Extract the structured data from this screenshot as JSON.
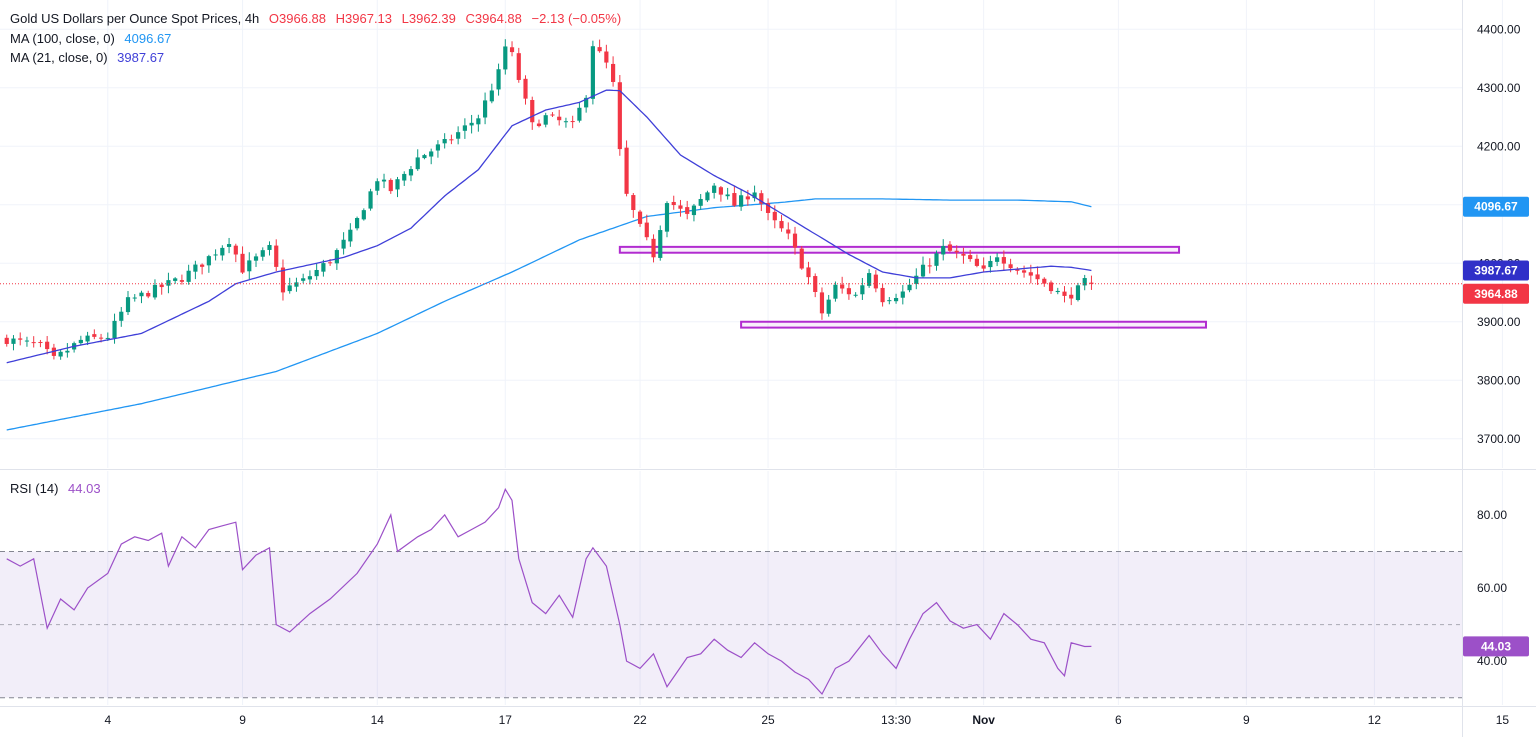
{
  "legend": {
    "symbol": "Gold US Dollars per Ounce Spot Prices, 4h",
    "open": "O3966.88",
    "high": "H3967.13",
    "low": "L3962.39",
    "close": "C3964.88",
    "change": "−2.13 (−0.05%)",
    "ma100_label": "MA (100, close, 0)",
    "ma100_value": "4096.67",
    "ma21_label": "MA (21, close, 0)",
    "ma21_value": "3987.67",
    "rsi_label": "RSI (14)",
    "rsi_value": "44.03"
  },
  "colors": {
    "bull": "#089981",
    "bear": "#f23645",
    "ma100": "#2196f3",
    "ma21": "#3f3fd8",
    "rsi": "#9c50c8",
    "zone": "#b12bd0",
    "last_price": "#f23645"
  },
  "chart_data": {
    "type": "candlestick",
    "title": "Gold US Dollars per Ounce Spot Prices, 4h",
    "price_axis": {
      "ylim": [
        3650,
        4450
      ],
      "ticks": [
        3700,
        3800,
        3900,
        4000,
        4100,
        4200,
        4300,
        4400
      ],
      "tick_labels": [
        "3700.00",
        "3800.00",
        "3900.00",
        "4000.00",
        "4100.00",
        "4200.00",
        "4300.00",
        "4400.00"
      ]
    },
    "x_axis": {
      "bar_range": [
        -1,
        216
      ],
      "ticks": [
        {
          "label": "4",
          "bar": 15
        },
        {
          "label": "9",
          "bar": 35
        },
        {
          "label": "14",
          "bar": 55
        },
        {
          "label": "17",
          "bar": 74
        },
        {
          "label": "22",
          "bar": 94
        },
        {
          "label": "25",
          "bar": 113
        },
        {
          "label": "13:30",
          "bar": 132
        },
        {
          "label": "Nov",
          "bar": 145,
          "bold": true
        },
        {
          "label": "6",
          "bar": 165
        },
        {
          "label": "9",
          "bar": 184
        },
        {
          "label": "12",
          "bar": 203
        },
        {
          "label": "15",
          "bar": 222
        }
      ]
    },
    "anchors": [
      [
        0,
        3870
      ],
      [
        5,
        3858
      ],
      [
        7,
        3835
      ],
      [
        11,
        3868
      ],
      [
        15,
        3875
      ],
      [
        18,
        3935
      ],
      [
        22,
        3955
      ],
      [
        26,
        3975
      ],
      [
        29,
        4000
      ],
      [
        33,
        4040
      ],
      [
        35,
        3990
      ],
      [
        39,
        4025
      ],
      [
        41,
        3955
      ],
      [
        44,
        3970
      ],
      [
        48,
        4005
      ],
      [
        51,
        4050
      ],
      [
        55,
        4145
      ],
      [
        57,
        4125
      ],
      [
        61,
        4180
      ],
      [
        65,
        4205
      ],
      [
        70,
        4250
      ],
      [
        73,
        4325
      ],
      [
        74,
        4370
      ],
      [
        75,
        4355
      ],
      [
        78,
        4235
      ],
      [
        80,
        4250
      ],
      [
        84,
        4235
      ],
      [
        86,
        4290
      ],
      [
        87,
        4375
      ],
      [
        89,
        4340
      ],
      [
        90,
        4305
      ],
      [
        91,
        4190
      ],
      [
        92,
        4115
      ],
      [
        94,
        4060
      ],
      [
        96,
        4015
      ],
      [
        98,
        4110
      ],
      [
        101,
        4080
      ],
      [
        105,
        4135
      ],
      [
        108,
        4100
      ],
      [
        111,
        4125
      ],
      [
        113,
        4080
      ],
      [
        116,
        4045
      ],
      [
        119,
        3975
      ],
      [
        121,
        3915
      ],
      [
        123,
        3960
      ],
      [
        126,
        3945
      ],
      [
        128,
        3985
      ],
      [
        130,
        3940
      ],
      [
        133,
        3950
      ],
      [
        136,
        3990
      ],
      [
        139,
        4025
      ],
      [
        142,
        4010
      ],
      [
        145,
        3985
      ],
      [
        147,
        4015
      ],
      [
        150,
        3990
      ],
      [
        152,
        3980
      ],
      [
        155,
        3960
      ],
      [
        157,
        3940
      ],
      [
        159,
        3955
      ],
      [
        160,
        3967
      ],
      [
        161,
        3964.88
      ]
    ],
    "ma100": [
      [
        0,
        3715
      ],
      [
        20,
        3760
      ],
      [
        40,
        3815
      ],
      [
        55,
        3880
      ],
      [
        65,
        3935
      ],
      [
        75,
        3985
      ],
      [
        85,
        4040
      ],
      [
        90,
        4060
      ],
      [
        95,
        4080
      ],
      [
        105,
        4095
      ],
      [
        115,
        4104
      ],
      [
        120,
        4110
      ],
      [
        130,
        4110
      ],
      [
        140,
        4108
      ],
      [
        150,
        4108
      ],
      [
        158,
        4105
      ],
      [
        161,
        4096.67
      ]
    ],
    "ma21": [
      [
        0,
        3830
      ],
      [
        10,
        3858
      ],
      [
        20,
        3880
      ],
      [
        30,
        3935
      ],
      [
        34,
        3965
      ],
      [
        40,
        3985
      ],
      [
        50,
        4010
      ],
      [
        55,
        4030
      ],
      [
        60,
        4060
      ],
      [
        65,
        4115
      ],
      [
        70,
        4160
      ],
      [
        75,
        4235
      ],
      [
        80,
        4262
      ],
      [
        85,
        4275
      ],
      [
        89,
        4296
      ],
      [
        91,
        4295
      ],
      [
        95,
        4250
      ],
      [
        100,
        4185
      ],
      [
        105,
        4150
      ],
      [
        110,
        4120
      ],
      [
        115,
        4085
      ],
      [
        120,
        4050
      ],
      [
        125,
        4015
      ],
      [
        130,
        3985
      ],
      [
        135,
        3975
      ],
      [
        140,
        3975
      ],
      [
        145,
        3985
      ],
      [
        150,
        3990
      ],
      [
        155,
        3995
      ],
      [
        158,
        3993
      ],
      [
        161,
        3987.67
      ]
    ],
    "last_price": 3964.88,
    "resistance_zone": {
      "from_bar": 91,
      "to_bar": 174,
      "low": 4018,
      "high": 4028
    },
    "support_zone": {
      "from_bar": 109,
      "to_bar": 178,
      "low": 3890,
      "high": 3900
    },
    "rsi": {
      "period": 14,
      "ylim": [
        28,
        92
      ],
      "ticks": [
        40,
        60,
        80
      ],
      "tick_labels": [
        "40.00",
        "60.00",
        "80.00"
      ],
      "band": [
        30,
        70
      ],
      "midline": 50,
      "last": 44.03,
      "values": [
        [
          0,
          68
        ],
        [
          2,
          66
        ],
        [
          4,
          68
        ],
        [
          6,
          49
        ],
        [
          8,
          57
        ],
        [
          10,
          54
        ],
        [
          12,
          60
        ],
        [
          15,
          64
        ],
        [
          17,
          72
        ],
        [
          19,
          74
        ],
        [
          21,
          73
        ],
        [
          23,
          75
        ],
        [
          24,
          66
        ],
        [
          26,
          74
        ],
        [
          28,
          71
        ],
        [
          30,
          76
        ],
        [
          32,
          77
        ],
        [
          34,
          78
        ],
        [
          35,
          65
        ],
        [
          37,
          69
        ],
        [
          39,
          71
        ],
        [
          40,
          50
        ],
        [
          42,
          48
        ],
        [
          45,
          53
        ],
        [
          48,
          57
        ],
        [
          52,
          64
        ],
        [
          55,
          72
        ],
        [
          57,
          80
        ],
        [
          58,
          70
        ],
        [
          61,
          74
        ],
        [
          63,
          76
        ],
        [
          65,
          80
        ],
        [
          67,
          74
        ],
        [
          69,
          76
        ],
        [
          71,
          78
        ],
        [
          73,
          82
        ],
        [
          74,
          87
        ],
        [
          75,
          84
        ],
        [
          76,
          68
        ],
        [
          78,
          56
        ],
        [
          80,
          53
        ],
        [
          82,
          58
        ],
        [
          84,
          52
        ],
        [
          86,
          68
        ],
        [
          87,
          71
        ],
        [
          89,
          66
        ],
        [
          91,
          50
        ],
        [
          92,
          40
        ],
        [
          94,
          38
        ],
        [
          96,
          42
        ],
        [
          98,
          33
        ],
        [
          101,
          41
        ],
        [
          103,
          42
        ],
        [
          105,
          46
        ],
        [
          107,
          43
        ],
        [
          109,
          41
        ],
        [
          111,
          45
        ],
        [
          113,
          42
        ],
        [
          115,
          40
        ],
        [
          117,
          37
        ],
        [
          119,
          35
        ],
        [
          121,
          31
        ],
        [
          123,
          38
        ],
        [
          125,
          40
        ],
        [
          128,
          47
        ],
        [
          130,
          42
        ],
        [
          132,
          38
        ],
        [
          134,
          46
        ],
        [
          136,
          53
        ],
        [
          138,
          56
        ],
        [
          140,
          51
        ],
        [
          142,
          49
        ],
        [
          144,
          50
        ],
        [
          146,
          46
        ],
        [
          148,
          53
        ],
        [
          150,
          50
        ],
        [
          152,
          46
        ],
        [
          154,
          45
        ],
        [
          156,
          38
        ],
        [
          157,
          36
        ],
        [
          158,
          45
        ],
        [
          160,
          44
        ],
        [
          161,
          44.03
        ]
      ]
    }
  }
}
